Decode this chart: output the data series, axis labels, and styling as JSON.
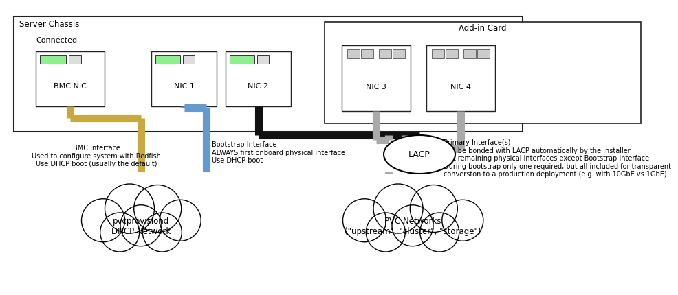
{
  "bg_color": "#ffffff",
  "colors": {
    "bmc_wire": "#C8A840",
    "bootstrap_wire": "#6699CC",
    "black_wire": "#111111",
    "gray_wire": "#AAAAAA",
    "green_port": "#90EE90",
    "border": "#222222"
  },
  "labels": {
    "server_chassis": "Server Chassis",
    "addin_card": "Add-in Card",
    "connected": "Connected",
    "bmc_nic": "BMC NIC",
    "nic1": "NIC 1",
    "nic2": "NIC 2",
    "nic3": "NIC 3",
    "nic4": "NIC 4",
    "lacp": "LACP",
    "bmc_desc": "BMC Interface\nUsed to configure system with Redfish\nUse DHCP boot (usually the default)",
    "bootstrap_desc": "Bootstrap Interface\nALWAYS first onboard physical interface\nUse DHCP boot",
    "primary_desc": "Primary Interface(s)\nWill be bonded with LACP automatically by the installer\nALL remaining physical interfaces except Bootstrap Interface\nDuring bootstrap only one required, but all included for transparent\nconverston to a production deployment (e.g. with 10GbE vs 1GbE)",
    "dhcp_cloud": "pvcprovisiond\nDHCP Network",
    "pvc_cloud": "PVC Networks\n(\"upstream\", \"cluster\", \"storage\")"
  }
}
